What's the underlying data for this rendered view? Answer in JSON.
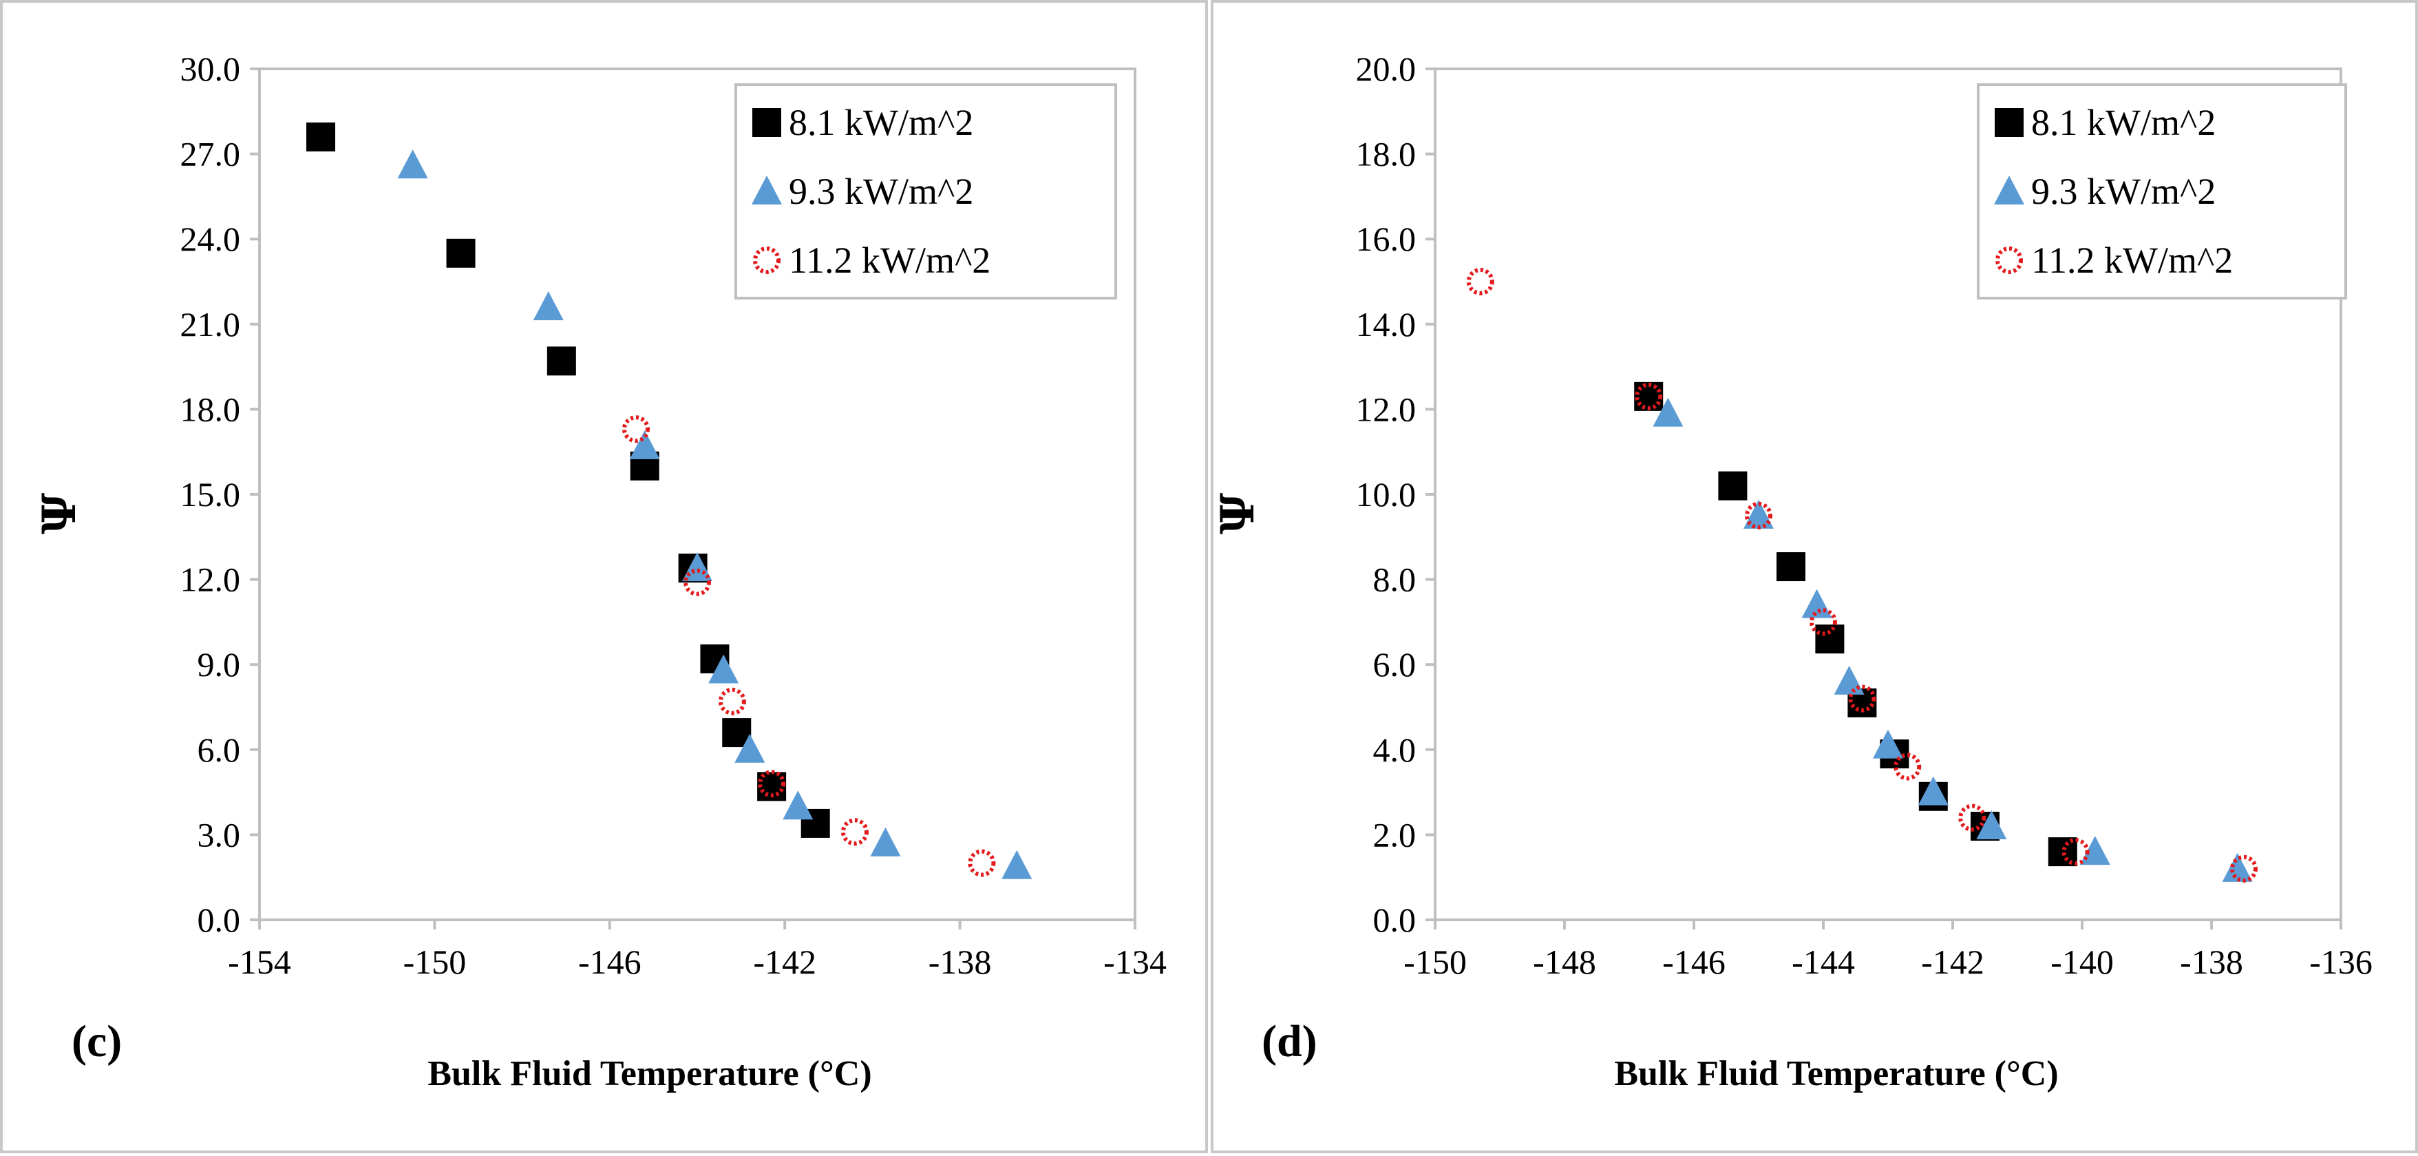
{
  "chart_data": [
    {
      "type": "scatter",
      "panel_label": "(c)",
      "title": "",
      "xlabel": "Bulk Fluid Temperature (°C)",
      "ylabel": "Ψ",
      "xlim": [
        -154,
        -134
      ],
      "ylim": [
        0,
        30
      ],
      "xticks": [
        -154,
        -150,
        -146,
        -142,
        -138,
        -134
      ],
      "xtick_labels": [
        "-154",
        "-150",
        "-146",
        "-142",
        "-138",
        "-134"
      ],
      "yticks": [
        0,
        3,
        6,
        9,
        12,
        15,
        18,
        21,
        24,
        27,
        30
      ],
      "ytick_labels": [
        "0.0",
        "3.0",
        "6.0",
        "9.0",
        "12.0",
        "15.0",
        "18.0",
        "21.0",
        "24.0",
        "27.0",
        "30.0"
      ],
      "grid": false,
      "legend_position": "top-right",
      "series": [
        {
          "name": "8.1 kW/m^2",
          "marker": "square",
          "color": "#000000",
          "x": [
            -152.6,
            -149.4,
            -147.1,
            -145.2,
            -144.1,
            -143.6,
            -143.1,
            -142.3,
            -141.3
          ],
          "y": [
            27.6,
            23.5,
            19.7,
            16.0,
            12.4,
            9.2,
            6.6,
            4.7,
            3.4
          ]
        },
        {
          "name": "9.3 kW/m^2",
          "marker": "triangle",
          "color": "#5b9bd5",
          "x": [
            -150.5,
            -147.4,
            -145.2,
            -144.0,
            -143.4,
            -142.8,
            -141.7,
            -139.7,
            -136.7
          ],
          "y": [
            26.6,
            21.6,
            16.7,
            12.4,
            8.8,
            6.0,
            4.0,
            2.7,
            1.9
          ]
        },
        {
          "name": "11.2 kW/m^2",
          "marker": "circle-dotted",
          "color": "#e31a1c",
          "x": [
            -145.4,
            -144.0,
            -143.2,
            -142.3,
            -140.4,
            -137.5
          ],
          "y": [
            17.3,
            11.9,
            7.7,
            4.8,
            3.1,
            2.0
          ]
        }
      ]
    },
    {
      "type": "scatter",
      "panel_label": "(d)",
      "title": "",
      "xlabel": "Bulk Fluid Temperature (°C)",
      "ylabel": "Ψ",
      "xlim": [
        -150,
        -136
      ],
      "ylim": [
        0,
        20
      ],
      "xticks": [
        -150,
        -148,
        -146,
        -144,
        -142,
        -140,
        -138,
        -136
      ],
      "xtick_labels": [
        "-150",
        "-148",
        "-146",
        "-144",
        "-142",
        "-140",
        "-138",
        "-136"
      ],
      "yticks": [
        0,
        2,
        4,
        6,
        8,
        10,
        12,
        14,
        16,
        18,
        20
      ],
      "ytick_labels": [
        "0.0",
        "2.0",
        "4.0",
        "6.0",
        "8.0",
        "10.0",
        "12.0",
        "14.0",
        "16.0",
        "18.0",
        "20.0"
      ],
      "grid": false,
      "legend_position": "top-right",
      "series": [
        {
          "name": "8.1 kW/m^2",
          "marker": "square",
          "color": "#000000",
          "x": [
            -146.7,
            -145.4,
            -144.5,
            -143.9,
            -143.4,
            -142.9,
            -142.3,
            -141.5,
            -140.3
          ],
          "y": [
            12.3,
            10.2,
            8.3,
            6.6,
            5.1,
            3.9,
            2.9,
            2.2,
            1.6
          ]
        },
        {
          "name": "9.3 kW/m^2",
          "marker": "triangle",
          "color": "#5b9bd5",
          "x": [
            -146.4,
            -145.0,
            -144.1,
            -143.6,
            -143.0,
            -142.3,
            -141.4,
            -139.8,
            -137.6
          ],
          "y": [
            11.9,
            9.5,
            7.4,
            5.6,
            4.1,
            3.0,
            2.2,
            1.6,
            1.2
          ]
        },
        {
          "name": "11.2 kW/m^2",
          "marker": "circle-dotted",
          "color": "#e31a1c",
          "x": [
            -149.3,
            -146.7,
            -145.0,
            -144.0,
            -143.4,
            -142.7,
            -141.7,
            -140.1,
            -137.5
          ],
          "y": [
            15.0,
            12.3,
            9.5,
            7.0,
            5.2,
            3.6,
            2.4,
            1.6,
            1.2
          ]
        }
      ]
    }
  ]
}
